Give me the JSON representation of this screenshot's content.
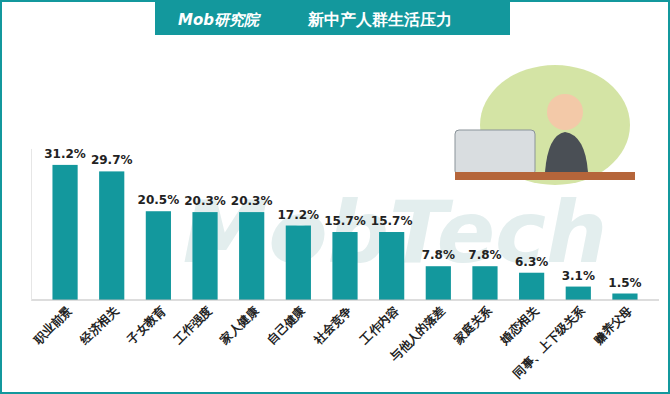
{
  "chart_data": {
    "type": "bar",
    "title": "新中产人群生活压力",
    "source": "Mob研究院",
    "annotations": [
      "MobTech"
    ],
    "categories": [
      "职业前景",
      "经济相关",
      "子女教育",
      "工作强度",
      "家人健康",
      "自己健康",
      "社会竞争",
      "工作内容",
      "与他人的落差",
      "家庭关系",
      "婚恋相关",
      "同事、上下级关系",
      "赡养父母"
    ],
    "values": [
      31.2,
      29.7,
      20.5,
      20.3,
      20.3,
      17.2,
      15.7,
      15.7,
      7.8,
      7.8,
      6.3,
      3.1,
      1.5
    ],
    "value_labels": [
      "31.2%",
      "29.7%",
      "20.5%",
      "20.3%",
      "20.3%",
      "17.2%",
      "15.7%",
      "15.7%",
      "7.8%",
      "7.8%",
      "6.3%",
      "3.1%",
      "1.5%"
    ],
    "color": "#13989d",
    "ylim": [
      0,
      35
    ],
    "data_labels": true,
    "tick_labels": "x",
    "grid": false
  }
}
